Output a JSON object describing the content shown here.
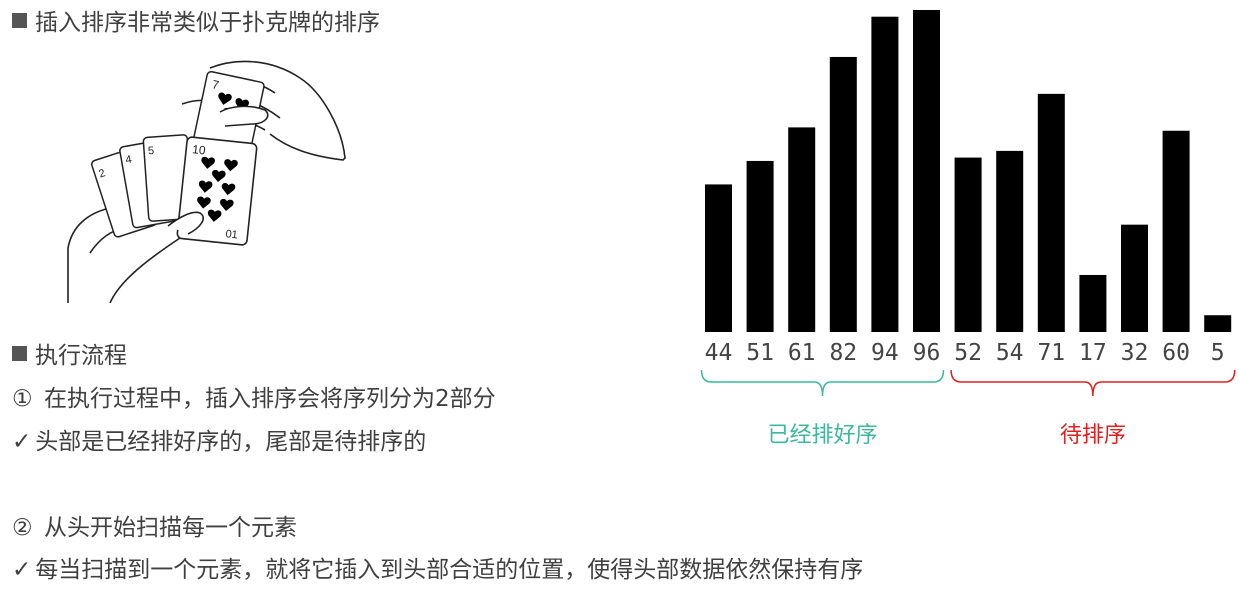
{
  "headings": {
    "intro": "插入排序非常类似于扑克牌的排序",
    "process": "执行流程"
  },
  "steps": [
    {
      "marker": "①",
      "text": "在执行过程中，插入排序会将序列分为2部分"
    },
    {
      "marker": "✓",
      "text": "头部是已经排好序的，尾部是待排序的"
    },
    {
      "marker": "②",
      "text": "从头开始扫描每一个元素"
    },
    {
      "marker": "✓",
      "text": "每当扫描到一个元素，就将它插入到头部合适的位置，使得头部数据依然保持有序"
    }
  ],
  "illustration": {
    "icon": "hand-holding-cards-icon",
    "cards": [
      "2",
      "4",
      "5",
      "7",
      "10",
      "01"
    ]
  },
  "chart_data": {
    "type": "bar",
    "categories": [
      "44",
      "51",
      "61",
      "82",
      "94",
      "96",
      "52",
      "54",
      "71",
      "17",
      "32",
      "60",
      "5"
    ],
    "values": [
      44,
      51,
      61,
      82,
      94,
      96,
      52,
      54,
      71,
      17,
      32,
      60,
      5
    ],
    "ylim": [
      0,
      96
    ],
    "bar_color": "#000000",
    "groups": [
      {
        "label": "已经排好序",
        "start": 0,
        "end": 5,
        "color": "#3cb89a"
      },
      {
        "label": "待排序",
        "start": 6,
        "end": 12,
        "color": "#e02020"
      }
    ]
  }
}
